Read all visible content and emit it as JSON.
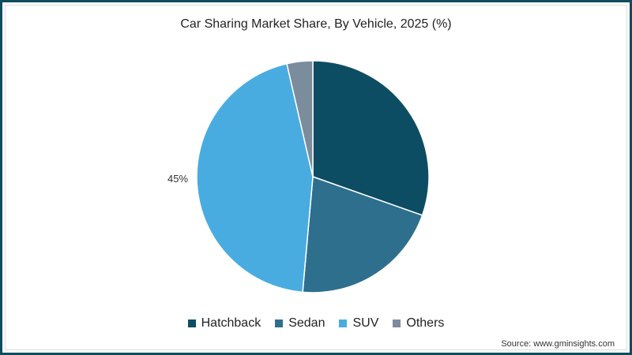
{
  "title": "Car Sharing Market Share, By Vehicle, 2025 (%)",
  "source": "Source: www.gminsights.com",
  "slice_label": "45%",
  "legend": [
    {
      "label": "Hatchback",
      "color": "#0d4d64"
    },
    {
      "label": "Sedan",
      "color": "#2e6f8e"
    },
    {
      "label": "SUV",
      "color": "#49ace0"
    },
    {
      "label": "Others",
      "color": "#7b8c9c"
    }
  ],
  "chart_data": {
    "type": "pie",
    "title": "Car Sharing Market Share, By Vehicle, 2025 (%)",
    "categories": [
      "Hatchback",
      "Sedan",
      "SUV",
      "Others"
    ],
    "values": [
      30.4,
      21.0,
      45.0,
      3.6
    ],
    "colors": [
      "#0d4d64",
      "#2e6f8e",
      "#49ace0",
      "#7b8c9c"
    ],
    "data_labels": {
      "SUV": "45%"
    },
    "legend_position": "bottom",
    "start_angle": "12 o'clock, clockwise"
  }
}
